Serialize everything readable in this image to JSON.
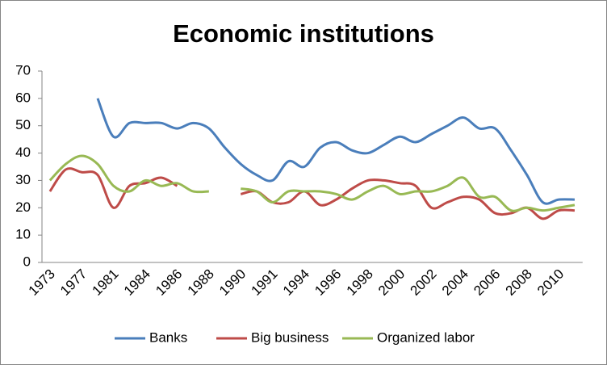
{
  "chart_data": {
    "type": "line",
    "title": "Economic institutions",
    "categories": [
      "1973",
      null,
      "1977",
      null,
      "1981",
      null,
      "1984",
      null,
      "1986",
      null,
      "1988",
      null,
      "1990",
      null,
      "1991",
      null,
      "1994",
      null,
      "1996",
      null,
      "1998",
      null,
      "2000",
      null,
      "2002",
      null,
      "2004",
      null,
      "2006",
      null,
      "2008",
      null,
      "2010",
      null
    ],
    "series": [
      {
        "name": "Banks",
        "color": "#4a7ebb",
        "values": [
          null,
          null,
          null,
          60,
          46,
          51,
          51,
          51,
          49,
          51,
          49,
          42,
          36,
          32,
          30,
          37,
          35,
          42,
          44,
          41,
          40,
          43,
          46,
          44,
          47,
          50,
          53,
          49,
          49,
          41,
          32,
          22,
          23,
          23
        ]
      },
      {
        "name": "Big business",
        "color": "#be4b48",
        "values": [
          26,
          34,
          33,
          32,
          20,
          28,
          29,
          31,
          28,
          null,
          null,
          null,
          25,
          26,
          22,
          22,
          26,
          21,
          23,
          27,
          30,
          30,
          29,
          28,
          20,
          22,
          24,
          23,
          18,
          18,
          20,
          16,
          19,
          19
        ]
      },
      {
        "name": "Organized labor",
        "color": "#98b954",
        "values": [
          30,
          36,
          39,
          36,
          28,
          26,
          30,
          28,
          29,
          26,
          26,
          null,
          27,
          26,
          22,
          26,
          26,
          26,
          25,
          23,
          26,
          28,
          25,
          26,
          26,
          28,
          31,
          24,
          24,
          19,
          20,
          19,
          20,
          21
        ]
      }
    ],
    "ylim": [
      0,
      70
    ],
    "yticks": [
      0,
      10,
      20,
      30,
      40,
      50,
      60,
      70
    ],
    "legend": "bottom"
  }
}
